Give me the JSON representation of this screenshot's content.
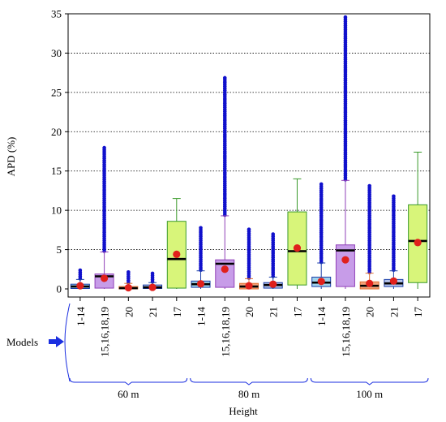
{
  "chart_data": {
    "type": "box",
    "title": "",
    "ylabel": "APD (%)",
    "xlabel": "Height",
    "side_label": "Models",
    "ylim": [
      0,
      35
    ],
    "yticks": [
      0,
      5,
      10,
      15,
      20,
      25,
      30,
      35
    ],
    "grid": "horizontal dotted",
    "groups": [
      "60 m",
      "80 m",
      "100 m"
    ],
    "categories": [
      "1-14",
      "15,16,18,19",
      "20",
      "21",
      "17"
    ],
    "category_colors": {
      "1-14": "#9fd3ec",
      "15,16,18,19": "#c79ce8",
      "20": "#f4a27a",
      "21": "#b4c4ec",
      "17": "#d8f57a"
    },
    "colors": {
      "outlier": "#1010cc",
      "mean": "#e0201c",
      "median": "#000000",
      "box_edge_1-14": "#1a3ea8",
      "box_edge_15,16,18,19": "#9040b8",
      "box_edge_20": "#e07030",
      "box_edge_21": "#1a3ea8",
      "box_edge_17": "#3a9a2a"
    },
    "boxes": [
      {
        "group": "60 m",
        "category": "1-14",
        "q1": 0.05,
        "median": 0.3,
        "q3": 0.6,
        "whisker_low": 0,
        "whisker_high": 1.2,
        "mean": 0.4,
        "outliers_from": 1.3,
        "outliers_to": 2.5
      },
      {
        "group": "60 m",
        "category": "15,16,18,19",
        "q1": 0.1,
        "median": 1.6,
        "q3": 1.9,
        "whisker_low": 0,
        "whisker_high": 4.7,
        "mean": 1.35,
        "outliers_from": 4.8,
        "outliers_to": 18.2
      },
      {
        "group": "60 m",
        "category": "20",
        "q1": 0.0,
        "median": 0.1,
        "q3": 0.3,
        "whisker_low": 0,
        "whisker_high": 0.7,
        "mean": 0.15,
        "outliers_from": 0.8,
        "outliers_to": 2.3
      },
      {
        "group": "60 m",
        "category": "21",
        "q1": 0.05,
        "median": 0.2,
        "q3": 0.5,
        "whisker_low": 0,
        "whisker_high": 0.8,
        "mean": 0.2,
        "outliers_from": 0.9,
        "outliers_to": 2.2
      },
      {
        "group": "60 m",
        "category": "17",
        "q1": 0.1,
        "median": 3.8,
        "q3": 8.6,
        "whisker_low": 0,
        "whisker_high": 11.5,
        "mean": 4.4,
        "outliers_from": null,
        "outliers_to": null
      },
      {
        "group": "80 m",
        "category": "1-14",
        "q1": 0.2,
        "median": 0.6,
        "q3": 1.0,
        "whisker_low": 0,
        "whisker_high": 2.3,
        "mean": 0.65,
        "outliers_from": 2.4,
        "outliers_to": 7.9
      },
      {
        "group": "80 m",
        "category": "15,16,18,19",
        "q1": 0.2,
        "median": 3.2,
        "q3": 3.7,
        "whisker_low": 0,
        "whisker_high": 9.3,
        "mean": 2.5,
        "outliers_from": 9.4,
        "outliers_to": 27.0
      },
      {
        "group": "80 m",
        "category": "20",
        "q1": 0.0,
        "median": 0.3,
        "q3": 0.7,
        "whisker_low": 0,
        "whisker_high": 1.3,
        "mean": 0.4,
        "outliers_from": 1.4,
        "outliers_to": 7.7
      },
      {
        "group": "80 m",
        "category": "21",
        "q1": 0.1,
        "median": 0.5,
        "q3": 0.8,
        "whisker_low": 0,
        "whisker_high": 1.5,
        "mean": 0.6,
        "outliers_from": 1.6,
        "outliers_to": 7.0
      },
      {
        "group": "80 m",
        "category": "17",
        "q1": 0.5,
        "median": 4.8,
        "q3": 9.8,
        "whisker_low": 0,
        "whisker_high": 14.0,
        "mean": 5.2,
        "outliers_from": null,
        "outliers_to": null
      },
      {
        "group": "100 m",
        "category": "1-14",
        "q1": 0.3,
        "median": 0.8,
        "q3": 1.5,
        "whisker_low": 0,
        "whisker_high": 3.3,
        "mean": 0.95,
        "outliers_from": 3.4,
        "outliers_to": 13.6
      },
      {
        "group": "100 m",
        "category": "15,16,18,19",
        "q1": 0.3,
        "median": 4.9,
        "q3": 5.6,
        "whisker_low": 0,
        "whisker_high": 13.8,
        "mean": 3.7,
        "outliers_from": 13.9,
        "outliers_to": 34.6
      },
      {
        "group": "100 m",
        "category": "20",
        "q1": 0.0,
        "median": 0.4,
        "q3": 0.9,
        "whisker_low": 0,
        "whisker_high": 2.0,
        "mean": 0.7,
        "outliers_from": 2.1,
        "outliers_to": 13.2
      },
      {
        "group": "100 m",
        "category": "21",
        "q1": 0.3,
        "median": 0.7,
        "q3": 1.2,
        "whisker_low": 0,
        "whisker_high": 2.3,
        "mean": 1.0,
        "outliers_from": 2.4,
        "outliers_to": 12.0
      },
      {
        "group": "100 m",
        "category": "17",
        "q1": 0.8,
        "median": 6.1,
        "q3": 10.7,
        "whisker_low": 0,
        "whisker_high": 17.4,
        "mean": 5.9,
        "outliers_from": null,
        "outliers_to": null
      }
    ]
  }
}
